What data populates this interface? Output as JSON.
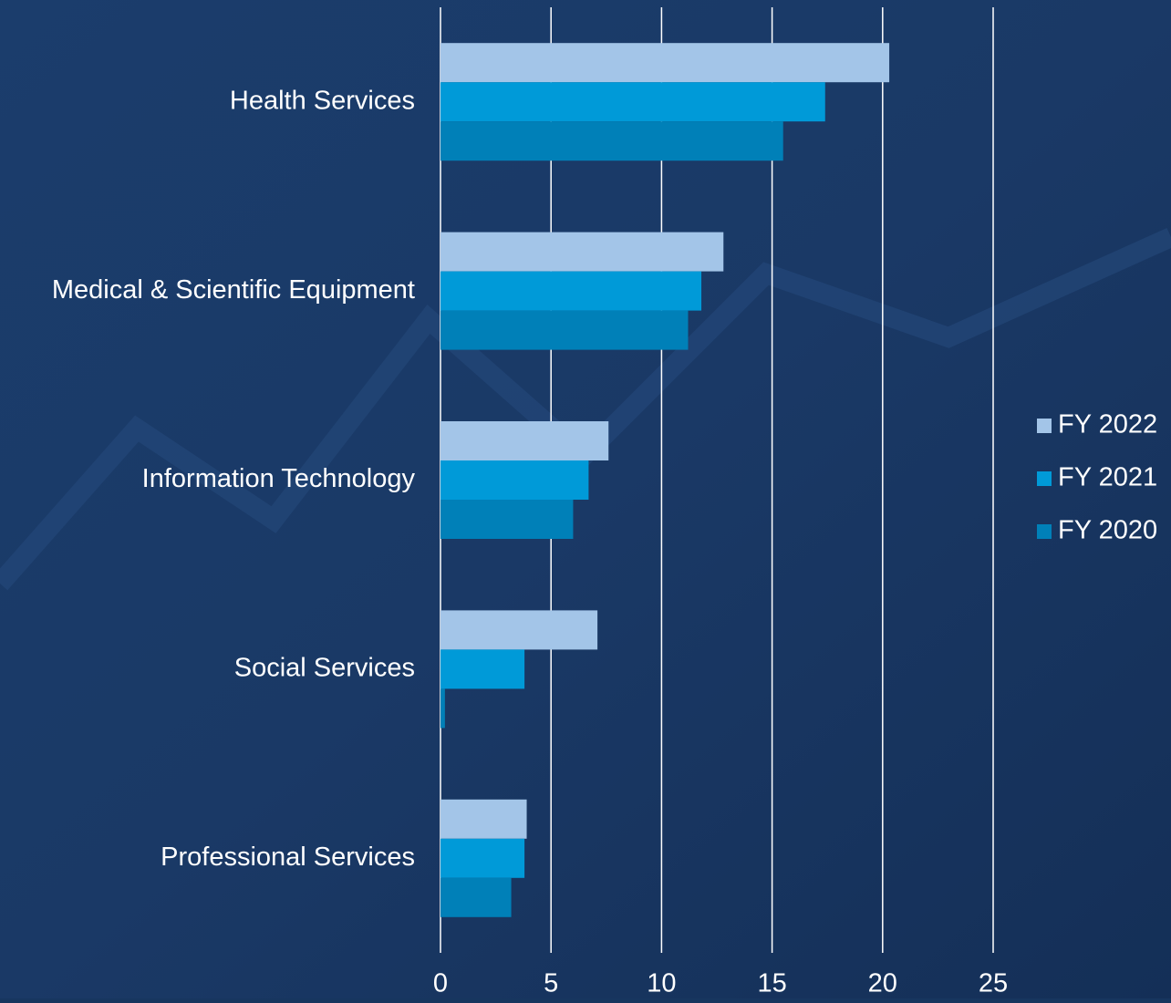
{
  "chart_data": {
    "type": "hbar",
    "categories": [
      "Health Services",
      "Medical & Scientific Equipment",
      "Information Technology",
      "Social Services",
      "Professional Services"
    ],
    "series": [
      {
        "name": "FY 2022",
        "color": "#a3c5e8",
        "values": [
          20.3,
          12.8,
          7.6,
          7.1,
          3.9
        ]
      },
      {
        "name": "FY 2021",
        "color": "#009ad8",
        "values": [
          17.4,
          11.8,
          6.7,
          3.8,
          3.8
        ]
      },
      {
        "name": "FY 2020",
        "color": "#0080b8",
        "values": [
          15.5,
          11.2,
          6.0,
          0.2,
          3.2
        ]
      }
    ],
    "xlim": [
      0,
      25
    ],
    "xticks": [
      0,
      5,
      10,
      15,
      20,
      25
    ],
    "grid": true,
    "legend": "right"
  }
}
